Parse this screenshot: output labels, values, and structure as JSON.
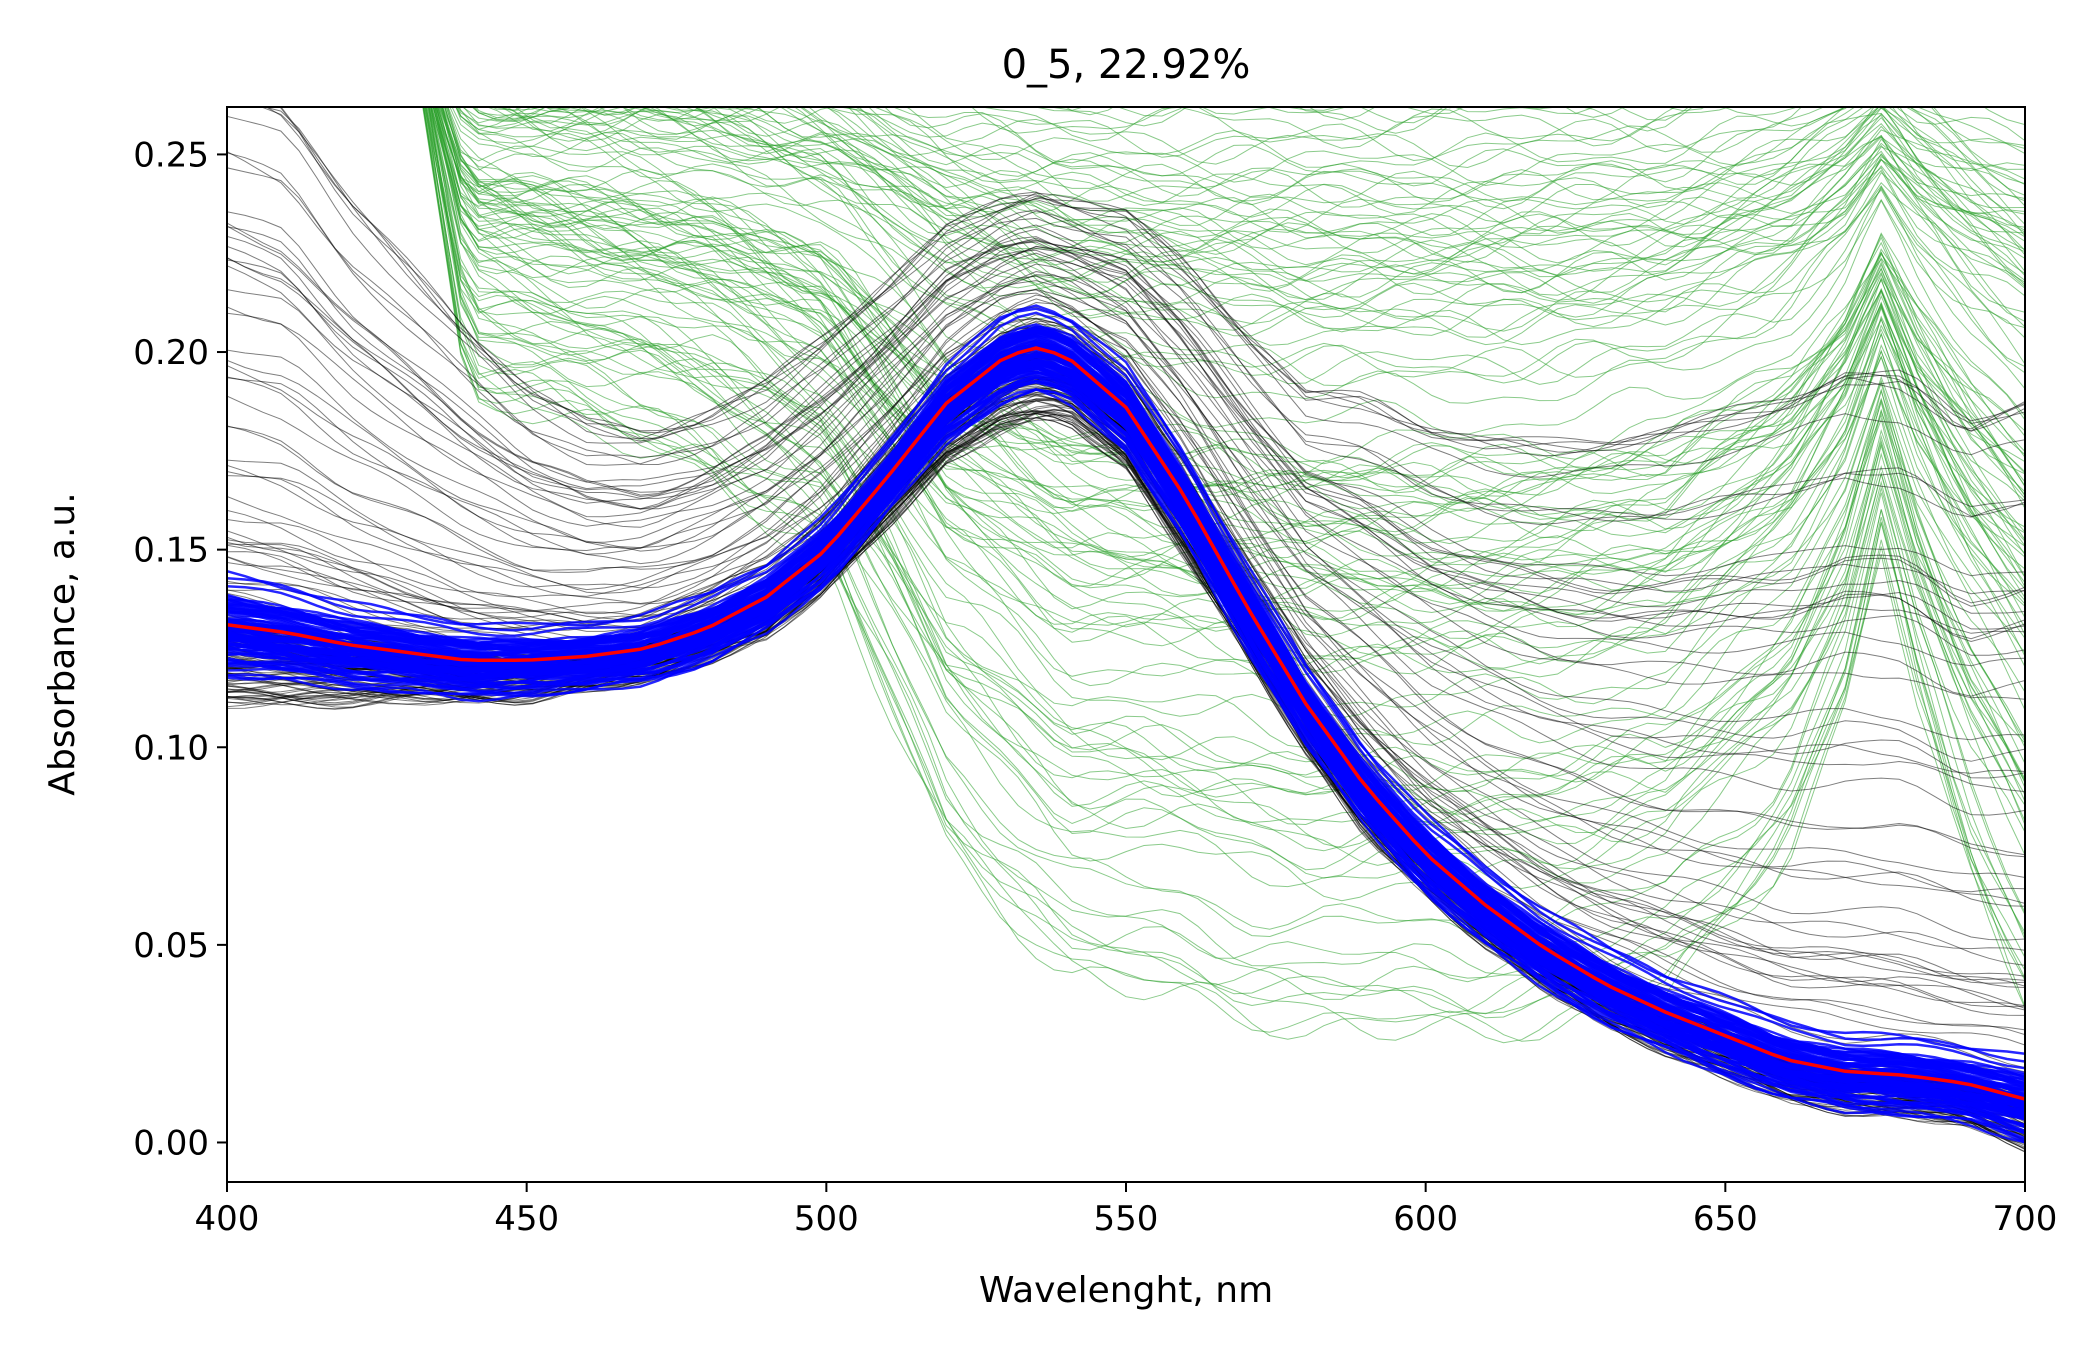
{
  "chart_data": {
    "type": "line",
    "title": "0_5, 22.92%",
    "xlabel": "Wavelenght, nm",
    "ylabel": "Absorbance, a.u.",
    "xlim": [
      400,
      700
    ],
    "ylim": [
      -0.01,
      0.262
    ],
    "xticks": [
      400,
      450,
      500,
      550,
      600,
      650,
      700
    ],
    "xtick_labels": [
      "400",
      "450",
      "500",
      "550",
      "600",
      "650",
      "700"
    ],
    "yticks": [
      0.0,
      0.05,
      0.1,
      0.15,
      0.2,
      0.25
    ],
    "ytick_labels": [
      "0.00",
      "0.05",
      "0.10",
      "0.15",
      "0.20",
      "0.25"
    ],
    "grid": false,
    "legend": "none",
    "colors": {
      "outlier_lines": "#2ca02c",
      "spread_lines": "#000000",
      "core_lines": "#0000ff",
      "mean_line": "#ff0000"
    },
    "series": [
      {
        "role": "mean",
        "color": "#ff0000",
        "x": [
          400,
          410,
          420,
          430,
          440,
          450,
          460,
          470,
          480,
          490,
          500,
          510,
          520,
          530,
          535,
          540,
          550,
          560,
          570,
          580,
          590,
          600,
          610,
          620,
          630,
          640,
          650,
          660,
          670,
          680,
          690,
          700
        ],
        "values": [
          0.131,
          0.129,
          0.126,
          0.124,
          0.122,
          0.122,
          0.123,
          0.125,
          0.13,
          0.138,
          0.15,
          0.168,
          0.187,
          0.199,
          0.201,
          0.199,
          0.186,
          0.163,
          0.136,
          0.111,
          0.09,
          0.073,
          0.06,
          0.049,
          0.04,
          0.033,
          0.027,
          0.021,
          0.018,
          0.017,
          0.015,
          0.011
        ]
      },
      {
        "role": "core band (blue)",
        "color": "#0000ff",
        "half_width": [
          0.012,
          0.011,
          0.01,
          0.009,
          0.009,
          0.008,
          0.008,
          0.008,
          0.008,
          0.008,
          0.008,
          0.008,
          0.009,
          0.01,
          0.01,
          0.01,
          0.01,
          0.01,
          0.01,
          0.009,
          0.009,
          0.009,
          0.009,
          0.009,
          0.009,
          0.009,
          0.009,
          0.009,
          0.009,
          0.009,
          0.009,
          0.01
        ]
      },
      {
        "role": "spread (black)",
        "color": "#000000",
        "upper_spread": [
          0.14,
          0.135,
          0.115,
          0.1,
          0.085,
          0.07,
          0.06,
          0.055,
          0.055,
          0.055,
          0.055,
          0.05,
          0.045,
          0.04,
          0.04,
          0.04,
          0.05,
          0.06,
          0.07,
          0.08,
          0.1,
          0.11,
          0.12,
          0.13,
          0.14,
          0.15,
          0.16,
          0.17,
          0.18,
          0.18,
          0.17,
          0.18
        ],
        "lower_spread": [
          0.02,
          0.018,
          0.015,
          0.012,
          0.01,
          0.01,
          0.008,
          0.008,
          0.008,
          0.01,
          0.01,
          0.012,
          0.015,
          0.018,
          0.018,
          0.016,
          0.015,
          0.015,
          0.012,
          0.012,
          0.012,
          0.01,
          0.01,
          0.01,
          0.01,
          0.01,
          0.01,
          0.01,
          0.01,
          0.01,
          0.01,
          0.012
        ]
      },
      {
        "role": "outliers (green)",
        "color": "#2ca02c",
        "x": [
          400,
          430,
          440,
          460,
          480,
          500,
          520,
          540,
          560,
          580,
          600,
          620,
          640,
          660,
          670,
          676,
          682,
          690,
          700
        ],
        "lower": [
          0.29,
          0.29,
          0.19,
          0.18,
          0.17,
          0.145,
          0.075,
          0.04,
          0.035,
          0.027,
          0.026,
          0.028,
          0.036,
          0.07,
          0.11,
          0.15,
          0.11,
          0.07,
          0.035
        ],
        "upper": [
          0.29,
          0.29,
          0.29,
          0.29,
          0.29,
          0.29,
          0.29,
          0.29,
          0.29,
          0.29,
          0.29,
          0.29,
          0.29,
          0.29,
          0.29,
          0.29,
          0.29,
          0.29,
          0.29
        ]
      }
    ]
  }
}
